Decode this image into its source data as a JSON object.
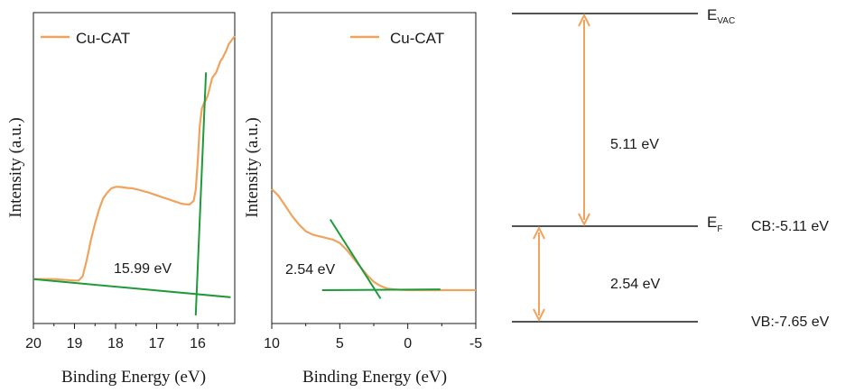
{
  "colors": {
    "series": "#f0a35c",
    "fit": "#1f9a3a",
    "axis": "#1a1a1a",
    "arrow": "#f0a35c"
  },
  "chart_data": [
    {
      "type": "line",
      "panel": "left",
      "title": "",
      "xlabel": "Binding Energy (eV)",
      "ylabel": "Intensity (a.u.)",
      "xlim": [
        20,
        15.1
      ],
      "ylim": [
        0,
        1
      ],
      "xticks": [
        "20",
        "19",
        "18",
        "17",
        "16"
      ],
      "legend": "Cu-CAT",
      "series": [
        {
          "name": "Cu-CAT",
          "x": [
            20.0,
            19.5,
            19.0,
            18.9,
            18.8,
            18.7,
            18.6,
            18.5,
            18.4,
            18.3,
            18.2,
            18.1,
            18.0,
            17.9,
            17.8,
            17.7,
            17.6,
            17.5,
            17.4,
            17.3,
            17.2,
            17.1,
            17.0,
            16.9,
            16.8,
            16.7,
            16.6,
            16.5,
            16.4,
            16.3,
            16.2,
            16.1,
            16.05,
            16.0,
            15.95,
            15.9,
            15.85,
            15.8,
            15.75,
            15.7,
            15.65,
            15.6,
            15.55,
            15.5,
            15.45,
            15.4,
            15.35,
            15.3,
            15.25,
            15.2,
            15.15,
            15.1
          ],
          "y": [
            0.13,
            0.13,
            0.125,
            0.125,
            0.14,
            0.2,
            0.27,
            0.33,
            0.38,
            0.42,
            0.44,
            0.455,
            0.46,
            0.46,
            0.458,
            0.456,
            0.455,
            0.452,
            0.448,
            0.444,
            0.44,
            0.435,
            0.43,
            0.425,
            0.42,
            0.415,
            0.41,
            0.405,
            0.4,
            0.398,
            0.397,
            0.41,
            0.45,
            0.55,
            0.68,
            0.74,
            0.76,
            0.77,
            0.79,
            0.82,
            0.85,
            0.86,
            0.87,
            0.89,
            0.91,
            0.92,
            0.935,
            0.95,
            0.97,
            0.98,
            0.99,
            1.0
          ]
        }
      ],
      "fit_lines": [
        {
          "x": [
            20.0,
            15.2
          ],
          "y": [
            0.13,
            0.065
          ]
        },
        {
          "x": [
            16.05,
            15.8
          ],
          "y": [
            0.0,
            0.87
          ]
        }
      ],
      "annotations": [
        "15.99 eV"
      ]
    },
    {
      "type": "line",
      "panel": "middle",
      "title": "",
      "xlabel": "Binding Energy (eV)",
      "ylabel": "Intensity (a.u.)",
      "xlim": [
        10,
        -5
      ],
      "ylim": [
        0,
        1
      ],
      "xticks": [
        "10",
        "5",
        "0",
        "-5"
      ],
      "legend": "Cu-CAT",
      "series": [
        {
          "name": "Cu-CAT",
          "x": [
            10,
            9.5,
            9,
            8.5,
            8,
            7.5,
            7,
            6.5,
            6,
            5.5,
            5,
            4.5,
            4,
            3.5,
            3,
            2.5,
            2,
            1.5,
            1,
            0.5,
            0,
            -1,
            -2,
            -3,
            -4,
            -5
          ],
          "y": [
            0.68,
            0.64,
            0.58,
            0.52,
            0.47,
            0.43,
            0.41,
            0.4,
            0.39,
            0.38,
            0.36,
            0.32,
            0.27,
            0.22,
            0.17,
            0.13,
            0.105,
            0.09,
            0.085,
            0.082,
            0.08,
            0.08,
            0.08,
            0.08,
            0.08,
            0.08
          ]
        }
      ],
      "fit_lines": [
        {
          "x": [
            6.3,
            -2.4
          ],
          "y": [
            0.08,
            0.085
          ]
        },
        {
          "x": [
            5.7,
            2.0
          ],
          "y": [
            0.5,
            0.03
          ]
        }
      ],
      "annotations": [
        "2.54 eV"
      ]
    }
  ],
  "diagram": {
    "vac_label_main": "E",
    "vac_label_sub": "VAC",
    "fermi_label_main": "E",
    "fermi_label_sub": "F",
    "gap_top": "5.11 eV",
    "cb_label": "CB:-5.11 eV",
    "gap_bottom": "2.54 eV",
    "vb_label": "VB:-7.65 eV"
  }
}
